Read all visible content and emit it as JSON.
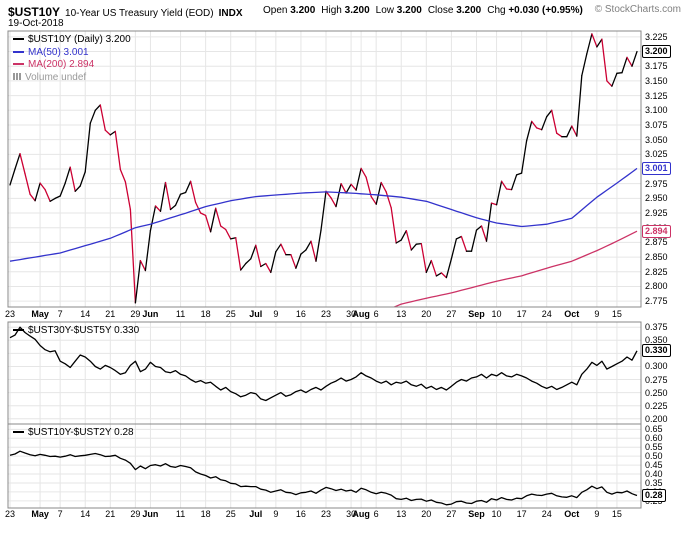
{
  "header": {
    "symbol": "$UST10Y",
    "title": "10-Year US Treasury Yield (EOD)",
    "exchange": "INDX",
    "ohlc": [
      {
        "label": "Open",
        "value": "3.200"
      },
      {
        "label": "High",
        "value": "3.200"
      },
      {
        "label": "Low",
        "value": "3.200"
      },
      {
        "label": "Close",
        "value": "3.200"
      },
      {
        "label": "Chg",
        "value": "+0.030 (+0.95%)"
      }
    ],
    "credit": "© StockCharts.com",
    "date": "19-Oct-2018"
  },
  "colors": {
    "grid": "#e6e6e6",
    "border": "#888888",
    "price_up": "#000000",
    "price_down": "#cc0033",
    "ma50": "#3333cc",
    "ma200": "#cc3366",
    "volume": "#999999",
    "spread": "#000000"
  },
  "x_axis": {
    "ticks": [
      {
        "i": 0,
        "label": "23",
        "bold": false
      },
      {
        "i": 6,
        "label": "May",
        "bold": true
      },
      {
        "i": 10,
        "label": "7",
        "bold": false
      },
      {
        "i": 15,
        "label": "14",
        "bold": false
      },
      {
        "i": 20,
        "label": "21",
        "bold": false
      },
      {
        "i": 25,
        "label": "29",
        "bold": false
      },
      {
        "i": 28,
        "label": "Jun",
        "bold": true
      },
      {
        "i": 34,
        "label": "11",
        "bold": false
      },
      {
        "i": 39,
        "label": "18",
        "bold": false
      },
      {
        "i": 44,
        "label": "25",
        "bold": false
      },
      {
        "i": 49,
        "label": "Jul",
        "bold": true
      },
      {
        "i": 53,
        "label": "9",
        "bold": false
      },
      {
        "i": 58,
        "label": "16",
        "bold": false
      },
      {
        "i": 63,
        "label": "23",
        "bold": false
      },
      {
        "i": 68,
        "label": "30",
        "bold": false
      },
      {
        "i": 70,
        "label": "Aug",
        "bold": true
      },
      {
        "i": 73,
        "label": "6",
        "bold": false
      },
      {
        "i": 78,
        "label": "13",
        "bold": false
      },
      {
        "i": 83,
        "label": "20",
        "bold": false
      },
      {
        "i": 88,
        "label": "27",
        "bold": false
      },
      {
        "i": 93,
        "label": "Sep",
        "bold": true
      },
      {
        "i": 97,
        "label": "10",
        "bold": false
      },
      {
        "i": 102,
        "label": "17",
        "bold": false
      },
      {
        "i": 107,
        "label": "24",
        "bold": false
      },
      {
        "i": 112,
        "label": "Oct",
        "bold": true
      },
      {
        "i": 117,
        "label": "9",
        "bold": false
      },
      {
        "i": 121,
        "label": "15",
        "bold": false
      }
    ]
  },
  "chart_data": [
    {
      "type": "line",
      "title": "$UST10Y (Daily)",
      "ylim": [
        2.765,
        3.235
      ],
      "y_ticks": [
        "3.225",
        "3.200",
        "3.175",
        "3.150",
        "3.125",
        "3.100",
        "3.075",
        "3.050",
        "3.025",
        "3.000",
        "2.975",
        "2.950",
        "2.925",
        "2.900",
        "2.875",
        "2.850",
        "2.825",
        "2.800",
        "2.775"
      ],
      "legend": [
        {
          "label": "$UST10Y (Daily)",
          "value": "3.200",
          "color": "#000000",
          "icon": "line"
        },
        {
          "label": "MA(50)",
          "value": "3.001",
          "color": "#3333cc",
          "icon": "line"
        },
        {
          "label": "MA(200)",
          "value": "2.894",
          "color": "#cc3366",
          "icon": "line"
        },
        {
          "label": "Volume",
          "value": "undef",
          "color": "#999999",
          "icon": "bars"
        }
      ],
      "last_labels": [
        {
          "text": "3.200",
          "value": 3.2,
          "color": "#000000"
        },
        {
          "text": "3.001",
          "value": 3.001,
          "color": "#3333cc"
        },
        {
          "text": "2.894",
          "value": 2.894,
          "color": "#cc3366"
        }
      ],
      "series": [
        {
          "name": "$UST10Y",
          "style": "updown",
          "values": [
            2.973,
            3.0,
            3.026,
            2.992,
            2.957,
            2.946,
            2.976,
            2.965,
            2.945,
            2.95,
            2.954,
            2.976,
            3.003,
            2.962,
            2.971,
            2.995,
            3.078,
            3.1,
            3.109,
            3.066,
            3.058,
            3.064,
            2.999,
            2.978,
            2.931,
            2.772,
            2.844,
            2.827,
            2.895,
            2.937,
            2.928,
            2.977,
            2.931,
            2.938,
            2.957,
            2.96,
            2.979,
            2.943,
            2.925,
            2.921,
            2.893,
            2.933,
            2.903,
            2.897,
            2.881,
            2.883,
            2.828,
            2.839,
            2.847,
            2.87,
            2.834,
            2.839,
            2.824,
            2.859,
            2.872,
            2.854,
            2.854,
            2.831,
            2.855,
            2.862,
            2.877,
            2.843,
            2.896,
            2.962,
            2.951,
            2.936,
            2.975,
            2.959,
            2.974,
            2.964,
            3.001,
            2.986,
            2.953,
            2.94,
            2.977,
            2.961,
            2.934,
            2.874,
            2.879,
            2.895,
            2.862,
            2.872,
            2.873,
            2.824,
            2.844,
            2.818,
            2.823,
            2.815,
            2.847,
            2.881,
            2.885,
            2.86,
            2.86,
            2.896,
            2.903,
            2.877,
            2.942,
            2.939,
            2.979,
            2.966,
            2.965,
            2.99,
            2.993,
            3.048,
            3.081,
            3.07,
            3.067,
            3.089,
            3.1,
            3.061,
            3.055,
            3.055,
            3.073,
            3.056,
            3.159,
            3.196,
            3.23,
            3.208,
            3.221,
            3.15,
            3.141,
            3.163,
            3.164,
            3.19,
            3.175,
            3.2
          ]
        },
        {
          "name": "MA(50)",
          "style": "line",
          "color": "#3333cc",
          "anchors_i": [
            0,
            10,
            20,
            25,
            28,
            34,
            39,
            44,
            49,
            58,
            63,
            68,
            73,
            78,
            83,
            88,
            93,
            97,
            102,
            107,
            112,
            117,
            121,
            125
          ],
          "anchors_v": [
            2.843,
            2.857,
            2.882,
            2.9,
            2.906,
            2.922,
            2.936,
            2.946,
            2.953,
            2.959,
            2.961,
            2.959,
            2.956,
            2.952,
            2.945,
            2.931,
            2.917,
            2.908,
            2.902,
            2.906,
            2.916,
            2.952,
            2.976,
            3.001
          ]
        },
        {
          "name": "MA(200)",
          "style": "line",
          "color": "#cc3366",
          "anchors_i": [
            0,
            25,
            49,
            73,
            78,
            83,
            88,
            93,
            97,
            102,
            107,
            112,
            117,
            121,
            125
          ],
          "anchors_v": [
            2.612,
            2.652,
            2.698,
            2.752,
            2.77,
            2.78,
            2.789,
            2.8,
            2.809,
            2.818,
            2.831,
            2.843,
            2.861,
            2.877,
            2.894
          ]
        }
      ]
    },
    {
      "type": "line",
      "title": "$UST30Y-$UST5Y",
      "ylim": [
        0.19,
        0.385
      ],
      "y_ticks": [
        "0.375",
        "0.350",
        "0.325",
        "0.300",
        "0.275",
        "0.250",
        "0.225",
        "0.200"
      ],
      "legend": [
        {
          "label": "$UST30Y-$UST5Y",
          "value": "0.330",
          "color": "#000000",
          "icon": "line"
        }
      ],
      "last_labels": [
        {
          "text": "0.330",
          "value": 0.33,
          "color": "#000000"
        }
      ],
      "series": [
        {
          "name": "$UST30Y-$UST5Y",
          "style": "line",
          "color": "#000000",
          "values": [
            0.355,
            0.36,
            0.375,
            0.365,
            0.358,
            0.352,
            0.34,
            0.332,
            0.328,
            0.33,
            0.31,
            0.305,
            0.298,
            0.31,
            0.322,
            0.318,
            0.31,
            0.3,
            0.295,
            0.302,
            0.298,
            0.292,
            0.285,
            0.288,
            0.302,
            0.31,
            0.29,
            0.295,
            0.308,
            0.3,
            0.298,
            0.29,
            0.288,
            0.292,
            0.285,
            0.282,
            0.275,
            0.27,
            0.273,
            0.268,
            0.27,
            0.262,
            0.255,
            0.26,
            0.252,
            0.248,
            0.242,
            0.245,
            0.25,
            0.248,
            0.238,
            0.235,
            0.24,
            0.245,
            0.25,
            0.243,
            0.246,
            0.252,
            0.255,
            0.25,
            0.256,
            0.26,
            0.255,
            0.262,
            0.268,
            0.272,
            0.278,
            0.272,
            0.275,
            0.28,
            0.288,
            0.282,
            0.278,
            0.272,
            0.268,
            0.272,
            0.265,
            0.27,
            0.268,
            0.272,
            0.265,
            0.262,
            0.266,
            0.258,
            0.262,
            0.256,
            0.26,
            0.255,
            0.262,
            0.27,
            0.275,
            0.272,
            0.278,
            0.28,
            0.285,
            0.278,
            0.285,
            0.282,
            0.288,
            0.282,
            0.28,
            0.285,
            0.282,
            0.278,
            0.272,
            0.268,
            0.262,
            0.258,
            0.262,
            0.256,
            0.26,
            0.265,
            0.27,
            0.265,
            0.285,
            0.295,
            0.308,
            0.302,
            0.31,
            0.295,
            0.3,
            0.305,
            0.31,
            0.318,
            0.312,
            0.33
          ]
        }
      ]
    },
    {
      "type": "line",
      "title": "$UST10Y-$UST2Y",
      "ylim": [
        0.21,
        0.68
      ],
      "y_ticks": [
        "0.65",
        "0.60",
        "0.55",
        "0.50",
        "0.45",
        "0.40",
        "0.35",
        "0.30",
        "0.25"
      ],
      "legend": [
        {
          "label": "$UST10Y-$UST2Y",
          "value": "0.28",
          "color": "#000000",
          "icon": "line"
        }
      ],
      "last_labels": [
        {
          "text": "0.28",
          "value": 0.28,
          "color": "#000000"
        }
      ],
      "series": [
        {
          "name": "$UST10Y-$UST2Y",
          "style": "line",
          "color": "#000000",
          "values": [
            0.505,
            0.512,
            0.528,
            0.518,
            0.508,
            0.502,
            0.51,
            0.505,
            0.498,
            0.5,
            0.495,
            0.5,
            0.508,
            0.498,
            0.502,
            0.505,
            0.51,
            0.515,
            0.508,
            0.498,
            0.5,
            0.505,
            0.488,
            0.478,
            0.46,
            0.425,
            0.445,
            0.43,
            0.448,
            0.452,
            0.445,
            0.458,
            0.442,
            0.438,
            0.448,
            0.442,
            0.435,
            0.412,
            0.4,
            0.392,
            0.378,
            0.385,
            0.368,
            0.362,
            0.348,
            0.345,
            0.33,
            0.332,
            0.33,
            0.33,
            0.315,
            0.31,
            0.298,
            0.305,
            0.312,
            0.298,
            0.295,
            0.285,
            0.295,
            0.298,
            0.305,
            0.292,
            0.31,
            0.325,
            0.318,
            0.308,
            0.315,
            0.305,
            0.31,
            0.298,
            0.32,
            0.312,
            0.298,
            0.29,
            0.298,
            0.292,
            0.282,
            0.262,
            0.258,
            0.265,
            0.252,
            0.258,
            0.26,
            0.248,
            0.255,
            0.242,
            0.238,
            0.228,
            0.232,
            0.245,
            0.248,
            0.238,
            0.235,
            0.248,
            0.252,
            0.242,
            0.262,
            0.255,
            0.268,
            0.258,
            0.255,
            0.265,
            0.262,
            0.278,
            0.288,
            0.282,
            0.28,
            0.288,
            0.292,
            0.278,
            0.272,
            0.27,
            0.278,
            0.268,
            0.298,
            0.312,
            0.332,
            0.318,
            0.328,
            0.298,
            0.288,
            0.298,
            0.295,
            0.305,
            0.29,
            0.28
          ]
        }
      ]
    }
  ]
}
